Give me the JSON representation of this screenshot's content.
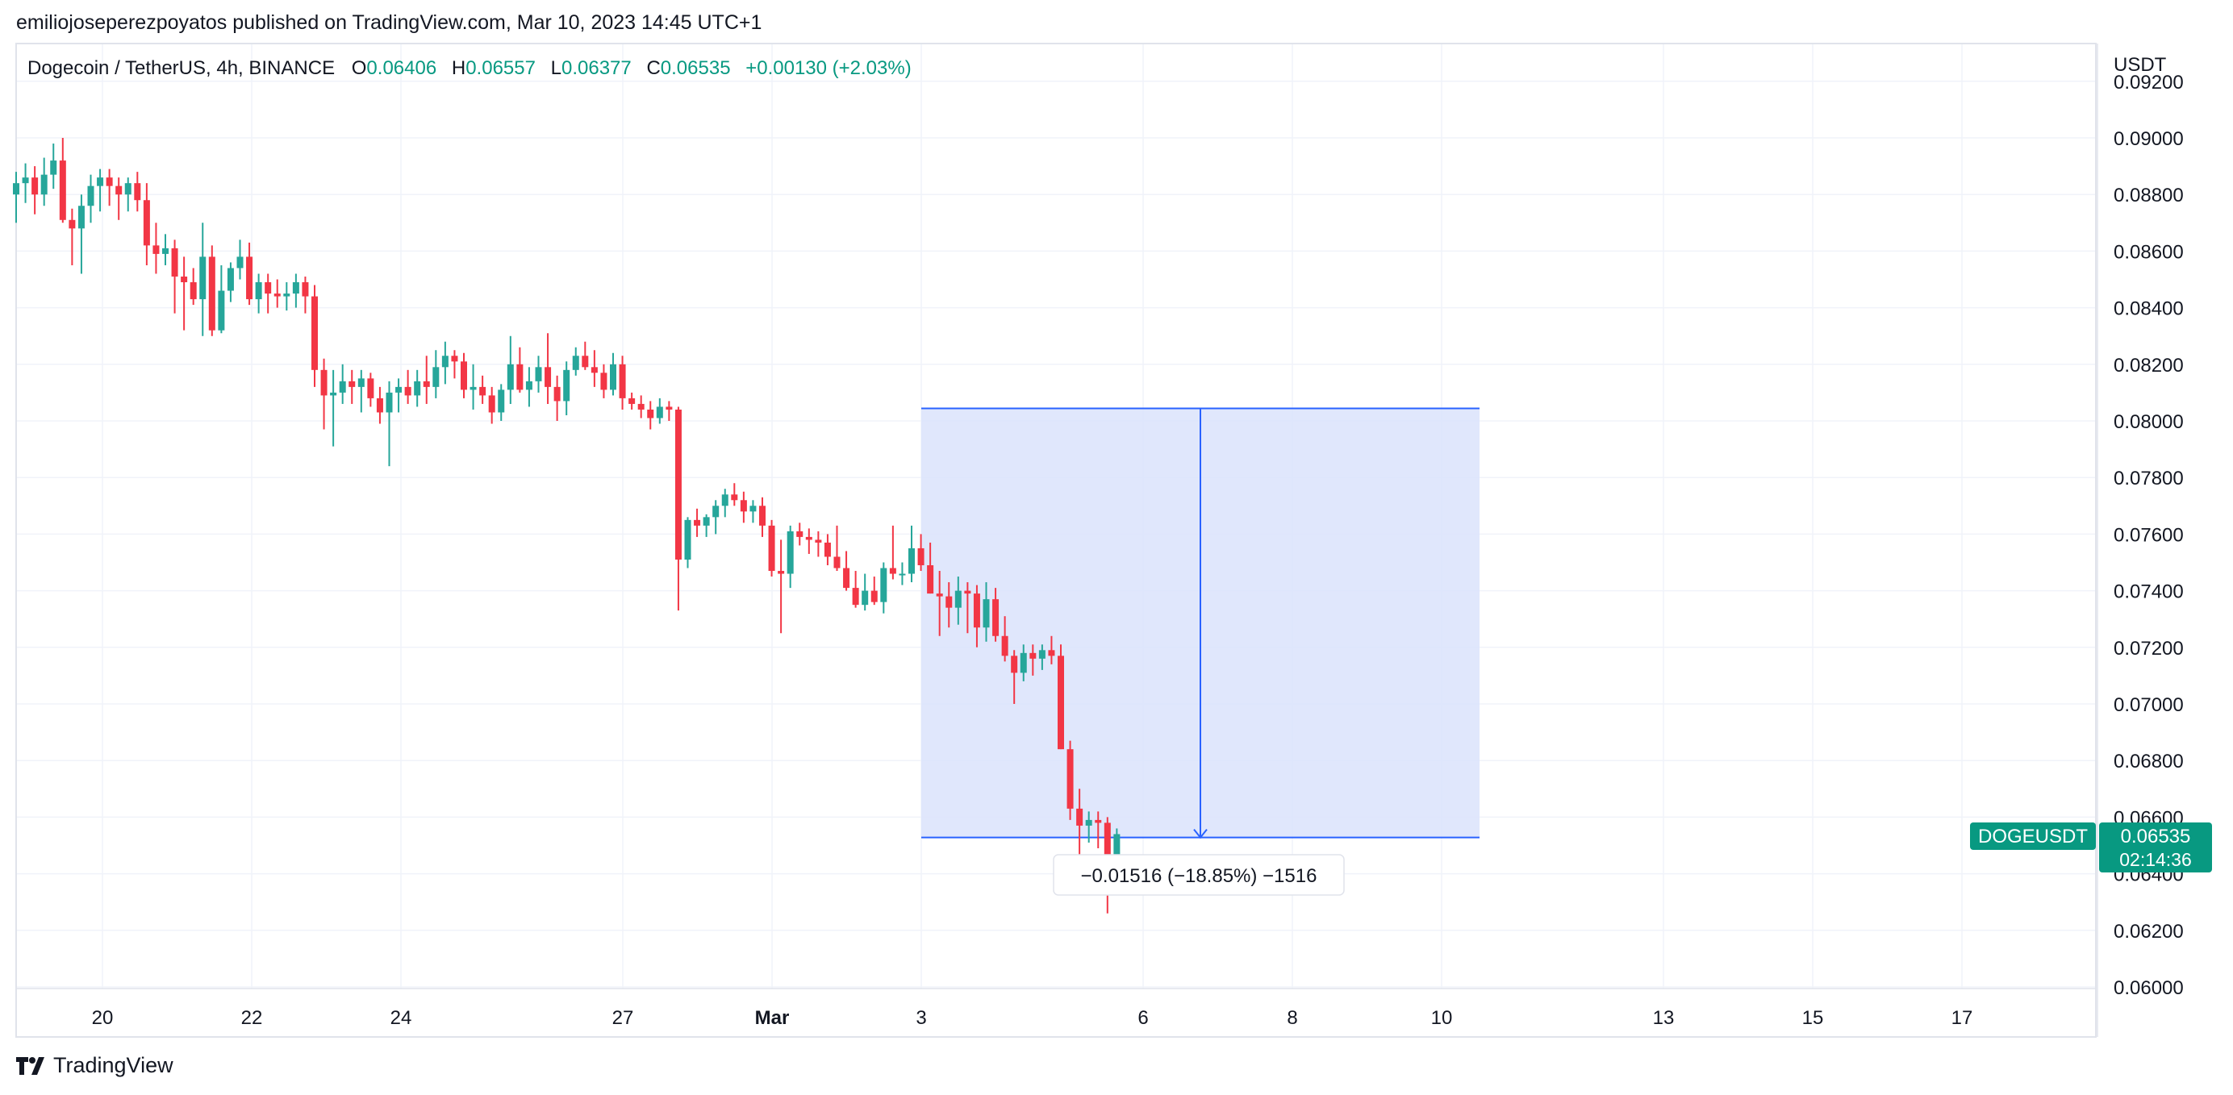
{
  "header": {
    "published_line": "emiliojoseperezpoyatos published on TradingView.com, Mar 10, 2023 14:45 UTC+1"
  },
  "legend": {
    "symbol": "Dogecoin / TetherUS, 4h, BINANCE",
    "o_label": "O",
    "o_value": "0.06406",
    "h_label": "H",
    "h_value": "0.06557",
    "l_label": "L",
    "l_value": "0.06377",
    "c_label": "C",
    "c_value": "0.06535",
    "change": "+0.00130 (+2.03%)"
  },
  "price_axis": {
    "currency": "USDT",
    "ticks": [
      "0.09200",
      "0.09000",
      "0.08800",
      "0.08600",
      "0.08400",
      "0.08200",
      "0.08000",
      "0.07800",
      "0.07600",
      "0.07400",
      "0.07200",
      "0.07000",
      "0.06800",
      "0.06600",
      "0.06400",
      "0.06200",
      "0.06000"
    ]
  },
  "time_axis": {
    "ticks": [
      "20",
      "22",
      "24",
      "27",
      "Mar",
      "3",
      "6",
      "8",
      "10",
      "13",
      "15",
      "17"
    ]
  },
  "price_label": {
    "symbol": "DOGEUSDT",
    "price": "0.06535",
    "countdown": "02:14:36"
  },
  "measure": {
    "label": "−0.01516 (−18.85%) −1516"
  },
  "footer": {
    "brand": "TradingView"
  },
  "colors": {
    "up": "#26a69a",
    "down": "#f23645",
    "measure_fill": "#dbe3fb",
    "measure_line": "#2962ff",
    "price_tag": "#089981",
    "grid": "#f0f3fa"
  },
  "chart_data": {
    "type": "candlestick",
    "title": "Dogecoin / TetherUS, 4h, BINANCE",
    "ylabel": "USDT",
    "ylim": [
      0.06,
      0.0926
    ],
    "x_ticks": [
      "20",
      "22",
      "24",
      "27",
      "Mar",
      "3",
      "6",
      "8",
      "10",
      "13",
      "15",
      "17"
    ],
    "grid": true,
    "candles": [
      [
        0.088,
        0.0888,
        0.087,
        0.0884
      ],
      [
        0.0884,
        0.0891,
        0.0877,
        0.0886
      ],
      [
        0.0886,
        0.089,
        0.0873,
        0.088
      ],
      [
        0.088,
        0.0893,
        0.0876,
        0.0887
      ],
      [
        0.0887,
        0.0898,
        0.0882,
        0.0892
      ],
      [
        0.0892,
        0.09,
        0.087,
        0.0871
      ],
      [
        0.0871,
        0.0875,
        0.0855,
        0.0868
      ],
      [
        0.0868,
        0.088,
        0.0852,
        0.0876
      ],
      [
        0.0876,
        0.0887,
        0.087,
        0.0883
      ],
      [
        0.0883,
        0.0889,
        0.0874,
        0.0886
      ],
      [
        0.0886,
        0.0889,
        0.0876,
        0.0883
      ],
      [
        0.0883,
        0.0886,
        0.0871,
        0.088
      ],
      [
        0.088,
        0.0886,
        0.0874,
        0.0884
      ],
      [
        0.0884,
        0.0888,
        0.0874,
        0.0878
      ],
      [
        0.0878,
        0.0884,
        0.0855,
        0.0862
      ],
      [
        0.0862,
        0.087,
        0.0852,
        0.0859
      ],
      [
        0.0859,
        0.0866,
        0.0855,
        0.0861
      ],
      [
        0.0861,
        0.0864,
        0.0838,
        0.0851
      ],
      [
        0.0851,
        0.0858,
        0.0832,
        0.0849
      ],
      [
        0.0849,
        0.0854,
        0.0841,
        0.0843
      ],
      [
        0.0843,
        0.087,
        0.083,
        0.0858
      ],
      [
        0.0858,
        0.0862,
        0.083,
        0.0832
      ],
      [
        0.0832,
        0.0855,
        0.0831,
        0.0846
      ],
      [
        0.0846,
        0.0856,
        0.0842,
        0.0854
      ],
      [
        0.0854,
        0.0864,
        0.085,
        0.0858
      ],
      [
        0.0858,
        0.0863,
        0.0841,
        0.0843
      ],
      [
        0.0843,
        0.0852,
        0.0838,
        0.0849
      ],
      [
        0.0849,
        0.0852,
        0.0838,
        0.0845
      ],
      [
        0.0845,
        0.085,
        0.084,
        0.0844
      ],
      [
        0.0844,
        0.0849,
        0.0839,
        0.0845
      ],
      [
        0.0845,
        0.0852,
        0.084,
        0.0849
      ],
      [
        0.0849,
        0.0851,
        0.0838,
        0.0844
      ],
      [
        0.0844,
        0.0848,
        0.0812,
        0.0818
      ],
      [
        0.0818,
        0.0822,
        0.0797,
        0.0809
      ],
      [
        0.0809,
        0.0818,
        0.0791,
        0.081
      ],
      [
        0.081,
        0.082,
        0.0806,
        0.0814
      ],
      [
        0.0814,
        0.0818,
        0.0806,
        0.0812
      ],
      [
        0.0812,
        0.0818,
        0.0803,
        0.0815
      ],
      [
        0.0815,
        0.0817,
        0.0805,
        0.0808
      ],
      [
        0.0808,
        0.0812,
        0.0799,
        0.0803
      ],
      [
        0.0803,
        0.0814,
        0.0784,
        0.081
      ],
      [
        0.081,
        0.0815,
        0.0803,
        0.0812
      ],
      [
        0.0812,
        0.0818,
        0.0806,
        0.0809
      ],
      [
        0.0809,
        0.0818,
        0.0805,
        0.0814
      ],
      [
        0.0814,
        0.0823,
        0.0806,
        0.0812
      ],
      [
        0.0812,
        0.0825,
        0.0808,
        0.0819
      ],
      [
        0.0819,
        0.0828,
        0.0813,
        0.0823
      ],
      [
        0.0823,
        0.0825,
        0.0815,
        0.0821
      ],
      [
        0.0821,
        0.0824,
        0.0808,
        0.0811
      ],
      [
        0.0811,
        0.082,
        0.0804,
        0.0812
      ],
      [
        0.0812,
        0.0816,
        0.0806,
        0.0809
      ],
      [
        0.0809,
        0.0812,
        0.0799,
        0.0803
      ],
      [
        0.0803,
        0.0813,
        0.08,
        0.0811
      ],
      [
        0.0811,
        0.083,
        0.0806,
        0.082
      ],
      [
        0.082,
        0.0826,
        0.081,
        0.0811
      ],
      [
        0.0811,
        0.0819,
        0.0805,
        0.0814
      ],
      [
        0.0814,
        0.0823,
        0.081,
        0.0819
      ],
      [
        0.0819,
        0.0831,
        0.0806,
        0.0812
      ],
      [
        0.0812,
        0.0816,
        0.08,
        0.0807
      ],
      [
        0.0807,
        0.0821,
        0.0802,
        0.0818
      ],
      [
        0.0818,
        0.0826,
        0.0816,
        0.0823
      ],
      [
        0.0823,
        0.0828,
        0.0818,
        0.0819
      ],
      [
        0.0819,
        0.0825,
        0.0812,
        0.0817
      ],
      [
        0.0817,
        0.082,
        0.0808,
        0.0811
      ],
      [
        0.0811,
        0.0824,
        0.0809,
        0.082
      ],
      [
        0.082,
        0.0823,
        0.0804,
        0.0808
      ],
      [
        0.0808,
        0.081,
        0.0804,
        0.0806
      ],
      [
        0.0806,
        0.0809,
        0.0801,
        0.0804
      ],
      [
        0.0804,
        0.0807,
        0.0797,
        0.0801
      ],
      [
        0.0801,
        0.0808,
        0.0799,
        0.0805
      ],
      [
        0.0805,
        0.0807,
        0.08,
        0.0804
      ],
      [
        0.0804,
        0.0805,
        0.0733,
        0.0751
      ],
      [
        0.0751,
        0.0766,
        0.0748,
        0.0765
      ],
      [
        0.0765,
        0.0769,
        0.0759,
        0.0763
      ],
      [
        0.0763,
        0.0767,
        0.0759,
        0.0766
      ],
      [
        0.0766,
        0.0772,
        0.076,
        0.077
      ],
      [
        0.077,
        0.0776,
        0.0766,
        0.0774
      ],
      [
        0.0774,
        0.0778,
        0.077,
        0.0772
      ],
      [
        0.0772,
        0.0775,
        0.0764,
        0.0768
      ],
      [
        0.0768,
        0.0772,
        0.0764,
        0.077
      ],
      [
        0.077,
        0.0773,
        0.0759,
        0.0763
      ],
      [
        0.0763,
        0.0765,
        0.0745,
        0.0747
      ],
      [
        0.0747,
        0.0758,
        0.0725,
        0.0746
      ],
      [
        0.0746,
        0.0763,
        0.0741,
        0.0761
      ],
      [
        0.0761,
        0.0764,
        0.0756,
        0.0759
      ],
      [
        0.0759,
        0.0762,
        0.0753,
        0.0758
      ],
      [
        0.0758,
        0.0761,
        0.0752,
        0.0757
      ],
      [
        0.0757,
        0.076,
        0.0749,
        0.0752
      ],
      [
        0.0752,
        0.0763,
        0.0747,
        0.0748
      ],
      [
        0.0748,
        0.0754,
        0.074,
        0.0741
      ],
      [
        0.0741,
        0.0747,
        0.0734,
        0.0735
      ],
      [
        0.0735,
        0.0746,
        0.0733,
        0.074
      ],
      [
        0.074,
        0.0745,
        0.0735,
        0.0736
      ],
      [
        0.0736,
        0.075,
        0.0732,
        0.0748
      ],
      [
        0.0748,
        0.0763,
        0.0744,
        0.0746
      ],
      [
        0.0746,
        0.075,
        0.0742,
        0.0746
      ],
      [
        0.0746,
        0.0763,
        0.0743,
        0.0755
      ],
      [
        0.0755,
        0.076,
        0.0747,
        0.0749
      ],
      [
        0.0749,
        0.0757,
        0.0739,
        0.0739
      ],
      [
        0.0739,
        0.0747,
        0.0724,
        0.0738
      ],
      [
        0.0738,
        0.0743,
        0.0727,
        0.0734
      ],
      [
        0.0734,
        0.0745,
        0.0728,
        0.074
      ],
      [
        0.074,
        0.0743,
        0.0725,
        0.0739
      ],
      [
        0.0739,
        0.0742,
        0.072,
        0.0727
      ],
      [
        0.0727,
        0.0743,
        0.0722,
        0.0737
      ],
      [
        0.0737,
        0.0741,
        0.0722,
        0.0724
      ],
      [
        0.0724,
        0.0731,
        0.0715,
        0.0717
      ],
      [
        0.0717,
        0.0719,
        0.07,
        0.0711
      ],
      [
        0.0711,
        0.0721,
        0.0708,
        0.0718
      ],
      [
        0.0718,
        0.0721,
        0.071,
        0.0716
      ],
      [
        0.0716,
        0.0721,
        0.0712,
        0.0719
      ],
      [
        0.0719,
        0.0724,
        0.0714,
        0.0717
      ],
      [
        0.0717,
        0.0721,
        0.0684,
        0.0684
      ],
      [
        0.0684,
        0.0687,
        0.0659,
        0.0663
      ],
      [
        0.0663,
        0.067,
        0.064,
        0.0657
      ],
      [
        0.0657,
        0.0662,
        0.0651,
        0.0659
      ],
      [
        0.0659,
        0.0662,
        0.0649,
        0.0658
      ],
      [
        0.0658,
        0.066,
        0.0626,
        0.0641
      ],
      [
        0.0641,
        0.0656,
        0.0638,
        0.0654
      ]
    ],
    "measure": {
      "from_price": 0.08044,
      "to_price": 0.06528,
      "change": -0.01516,
      "change_pct": -18.85,
      "ticks": -1516
    },
    "last_price": 0.06535
  }
}
